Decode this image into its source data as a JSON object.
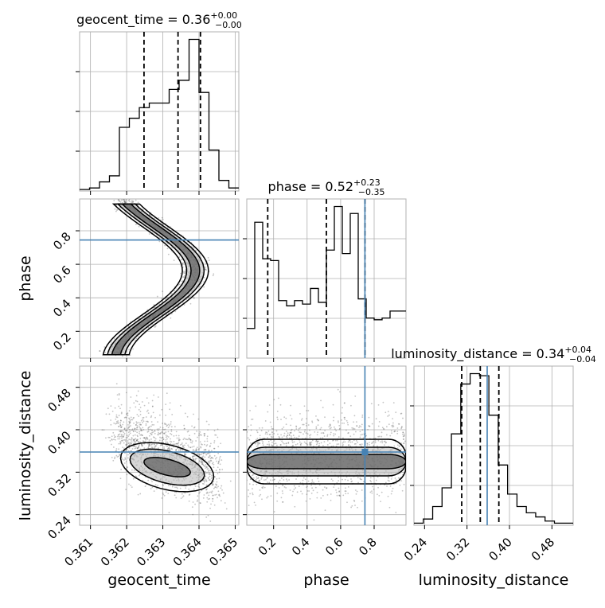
{
  "chart_data": {
    "type": "corner",
    "parameters": [
      "geocent_time",
      "phase",
      "luminosity_distance"
    ],
    "truths": {
      "geocent_time": null,
      "phase": 0.745,
      "luminosity_distance": 0.358
    },
    "colors": {
      "hist": "#000000",
      "truth": "#4682b4",
      "grid": "#b0b0b0",
      "frame": "#b0b0b0",
      "points": "#555555"
    },
    "diagonal": [
      {
        "param": "geocent_time",
        "title_name": "geocent_time",
        "title_value": "0.36",
        "title_plus": "+0.00",
        "title_minus": "−0.00",
        "range": [
          0.3607,
          0.3651
        ],
        "quantiles": [
          0.36248,
          0.36342,
          0.36404
        ],
        "counts": [
          1,
          2,
          6,
          10,
          42,
          48,
          55,
          58,
          58,
          67,
          73,
          100,
          65,
          27,
          7,
          2
        ]
      },
      {
        "param": "phase",
        "title_name": "phase",
        "title_value": "0.52",
        "title_plus": "+0.23",
        "title_minus": "−0.35",
        "range": [
          0.04,
          0.99
        ],
        "quantiles": [
          0.165,
          0.515,
          0.745
        ],
        "counts": [
          17,
          78,
          57,
          56,
          33,
          30,
          33,
          31,
          40,
          32,
          62,
          87,
          60,
          83,
          34,
          23,
          22,
          23,
          27,
          27
        ]
      },
      {
        "param": "luminosity_distance",
        "title_name": "luminosity_distance",
        "title_value": "0.34",
        "title_plus": "+0.04",
        "title_minus": "−0.04",
        "range": [
          0.22,
          0.52
        ],
        "quantiles": [
          0.31,
          0.345,
          0.38
        ],
        "counts": [
          1,
          3,
          9,
          18,
          44,
          68,
          73,
          72,
          53,
          29,
          15,
          9,
          6,
          4,
          2,
          1,
          1
        ]
      }
    ],
    "ticks": {
      "geocent_time": [
        "0.361",
        "0.362",
        "0.363",
        "0.364",
        "0.365"
      ],
      "phase": [
        "0.2",
        "0.4",
        "0.6",
        "0.8"
      ],
      "luminosity_distance": [
        "0.24",
        "0.32",
        "0.40",
        "0.48"
      ]
    },
    "axis_labels": {
      "x": [
        "geocent_time",
        "phase",
        "luminosity_distance"
      ],
      "y": [
        "phase",
        "luminosity_distance"
      ]
    }
  }
}
